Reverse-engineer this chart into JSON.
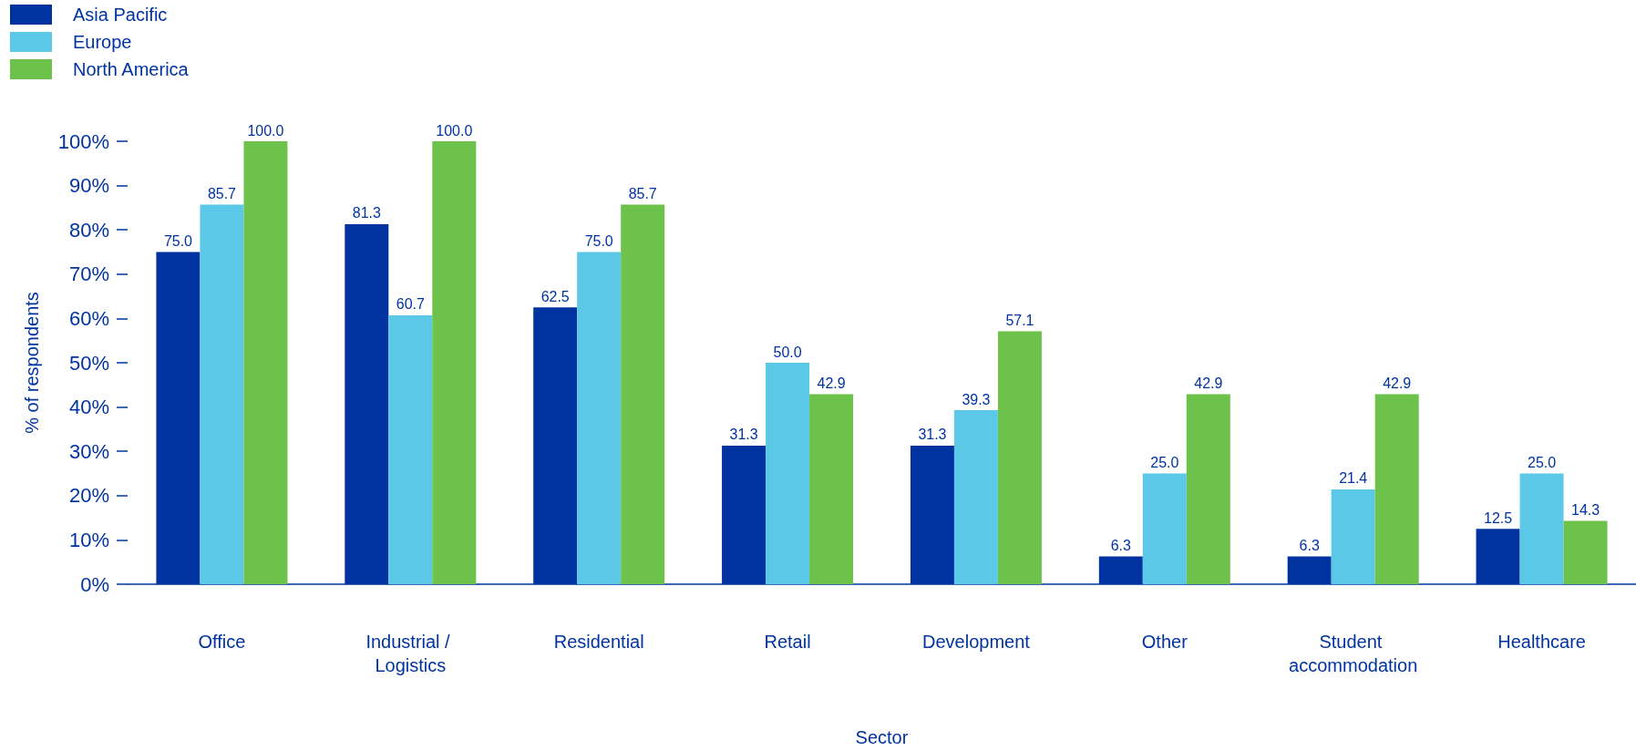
{
  "chart_data": {
    "type": "bar",
    "xlabel": "Sector",
    "ylabel": "% of respondents",
    "categories": [
      "Office",
      "Industrial / Logistics",
      "Residential",
      "Retail",
      "Development",
      "Other",
      "Student accommodation",
      "Healthcare"
    ],
    "series": [
      {
        "name": "Asia Pacific",
        "color": "#0033a0",
        "values": [
          75.0,
          81.3,
          62.5,
          31.3,
          31.3,
          6.3,
          6.3,
          12.5
        ],
        "value_labels": [
          "75.0",
          "81.3",
          "62.5",
          "31.3",
          "31.3",
          "6.3",
          "6.3",
          "12.5"
        ]
      },
      {
        "name": "Europe",
        "color": "#5bc8e8",
        "values": [
          85.7,
          60.7,
          75.0,
          50.0,
          39.3,
          25.0,
          21.4,
          25.0
        ],
        "value_labels": [
          "85.7",
          "60.7",
          "75.0",
          "50.0",
          "39.3",
          "25.0",
          "21.4",
          "25.0"
        ]
      },
      {
        "name": "North America",
        "color": "#6cc24a",
        "values": [
          100.0,
          100.0,
          85.7,
          42.9,
          57.1,
          42.9,
          42.9,
          14.3
        ],
        "value_labels": [
          "100.0",
          "100.0",
          "85.7",
          "42.9",
          "57.1",
          "42.9",
          "42.9",
          "14.3"
        ]
      }
    ],
    "ylim": [
      0,
      100
    ],
    "yticks": [
      {
        "value": 0,
        "label": "0%"
      },
      {
        "value": 10,
        "label": "10%"
      },
      {
        "value": 20,
        "label": "20%"
      },
      {
        "value": 30,
        "label": "30%"
      },
      {
        "value": 40,
        "label": "40%"
      },
      {
        "value": 50,
        "label": "50%"
      },
      {
        "value": 60,
        "label": "60%"
      },
      {
        "value": 70,
        "label": "70%"
      },
      {
        "value": 80,
        "label": "80%"
      },
      {
        "value": 90,
        "label": "90%"
      },
      {
        "value": 100,
        "label": "100%"
      }
    ],
    "grid": false,
    "legend": "top left"
  }
}
